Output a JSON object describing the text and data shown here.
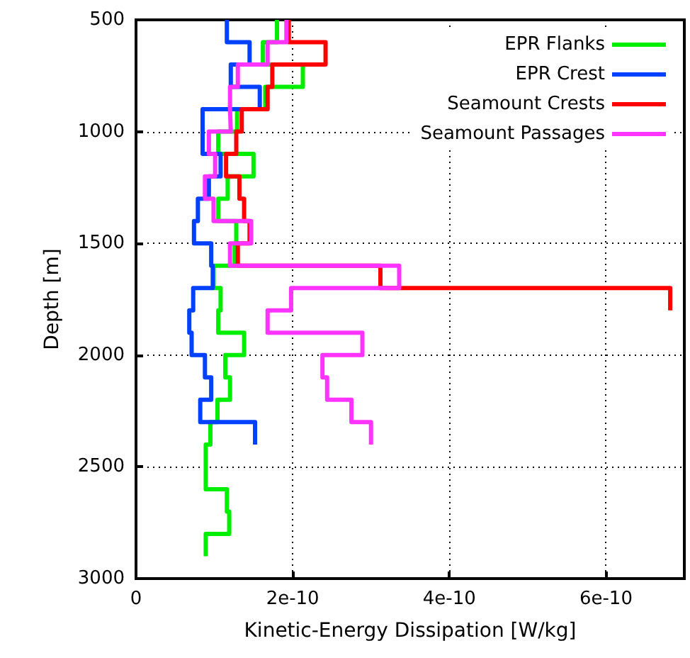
{
  "chart_data": {
    "type": "step",
    "orientation": "horizontal",
    "xlabel": "Kinetic-Energy Dissipation [W/kg]",
    "ylabel": "Depth [m]",
    "xlim": [
      0,
      7e-10
    ],
    "xticks": [
      0,
      2e-10,
      4e-10,
      6e-10
    ],
    "ylim": [
      3000,
      500
    ],
    "yticks": [
      500,
      1000,
      1500,
      2000,
      2500,
      3000
    ],
    "grid": true,
    "legend": "top right",
    "line_style": "solid",
    "series": [
      {
        "name": "EPR Flanks",
        "color": "#00ee00",
        "x": [
          500,
          600,
          700,
          800,
          900,
          1000,
          1100,
          1200,
          1300,
          1400,
          1500,
          1600,
          1700,
          1800,
          1900,
          2000,
          2100,
          2200,
          2300,
          2400,
          2500,
          2600,
          2700,
          2800,
          2900
        ],
        "values": [
          1.8e-10,
          1.62e-10,
          2.13e-10,
          1.65e-10,
          1.29e-10,
          1.05e-10,
          1.5e-10,
          1.17e-10,
          1.05e-10,
          1.28e-10,
          1.26e-10,
          9.9e-11,
          1.08e-10,
          1.05e-10,
          1.38e-10,
          1.14e-10,
          1.2e-10,
          1.04e-10,
          9.5e-11,
          8.9e-11,
          8.9e-11,
          1.16e-10,
          1.19e-10,
          8.9e-11,
          8.9e-11
        ]
      },
      {
        "name": "EPR Crest",
        "color": "#0040ff",
        "x": [
          500,
          600,
          700,
          800,
          900,
          1000,
          1100,
          1200,
          1300,
          1400,
          1500,
          1600,
          1700,
          1800,
          1900,
          2000,
          2100,
          2200,
          2300,
          2400
        ],
        "values": [
          1.16e-10,
          1.45e-10,
          1.21e-10,
          1.58e-10,
          8.5e-11,
          8.5e-11,
          1.08e-10,
          9.3e-11,
          7.9e-11,
          7.4e-11,
          9.6e-11,
          9.8e-11,
          7.3e-11,
          6.8e-11,
          7.1e-11,
          8.8e-11,
          9.6e-11,
          8.2e-11,
          1.52e-10,
          1.52e-10
        ]
      },
      {
        "name": "Seamount Crests",
        "color": "#ff0000",
        "x": [
          500,
          600,
          700,
          800,
          900,
          1000,
          1100,
          1200,
          1300,
          1400,
          1500,
          1600,
          1700,
          1800
        ],
        "values": [
          1.95e-10,
          2.42e-10,
          1.74e-10,
          1.68e-10,
          1.35e-10,
          1.28e-10,
          1.15e-10,
          1.32e-10,
          1.38e-10,
          1.45e-10,
          1.3e-10,
          3.12e-10,
          6.82e-10,
          6.82e-10
        ]
      },
      {
        "name": "Seamount Passages",
        "color": "#ff33ff",
        "x": [
          500,
          600,
          700,
          800,
          900,
          1000,
          1100,
          1200,
          1300,
          1400,
          1500,
          1600,
          1700,
          1800,
          1900,
          2000,
          2100,
          2200,
          2300,
          2400
        ],
        "values": [
          1.92e-10,
          1.68e-10,
          1.3e-10,
          1.2e-10,
          1.21e-10,
          9.3e-11,
          1.01e-10,
          8.8e-11,
          9.9e-11,
          1.47e-10,
          1.2e-10,
          3.36e-10,
          1.98e-10,
          1.68e-10,
          2.89e-10,
          2.38e-10,
          2.44e-10,
          2.75e-10,
          3e-10,
          3e-10
        ]
      }
    ]
  }
}
